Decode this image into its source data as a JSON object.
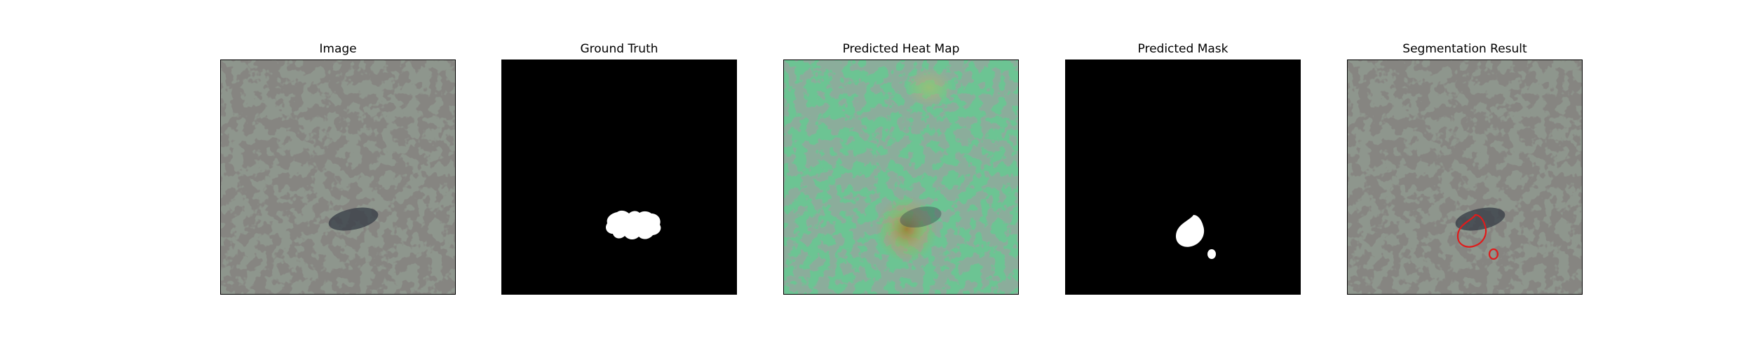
{
  "panels": [
    {
      "id": "image",
      "title": "Image"
    },
    {
      "id": "ground_truth",
      "title": "Ground Truth"
    },
    {
      "id": "heatmap",
      "title": "Predicted Heat Map"
    },
    {
      "id": "predicted_mask",
      "title": "Predicted Mask"
    },
    {
      "id": "segmentation",
      "title": "Segmentation Result"
    }
  ],
  "colors": {
    "texture_light": "#8e968d",
    "texture_dark": "#3d3c38",
    "heat_tint": "#5fc48c",
    "mask_background": "#000000",
    "mask_foreground": "#ffffff",
    "contour": "#e01b1b"
  }
}
